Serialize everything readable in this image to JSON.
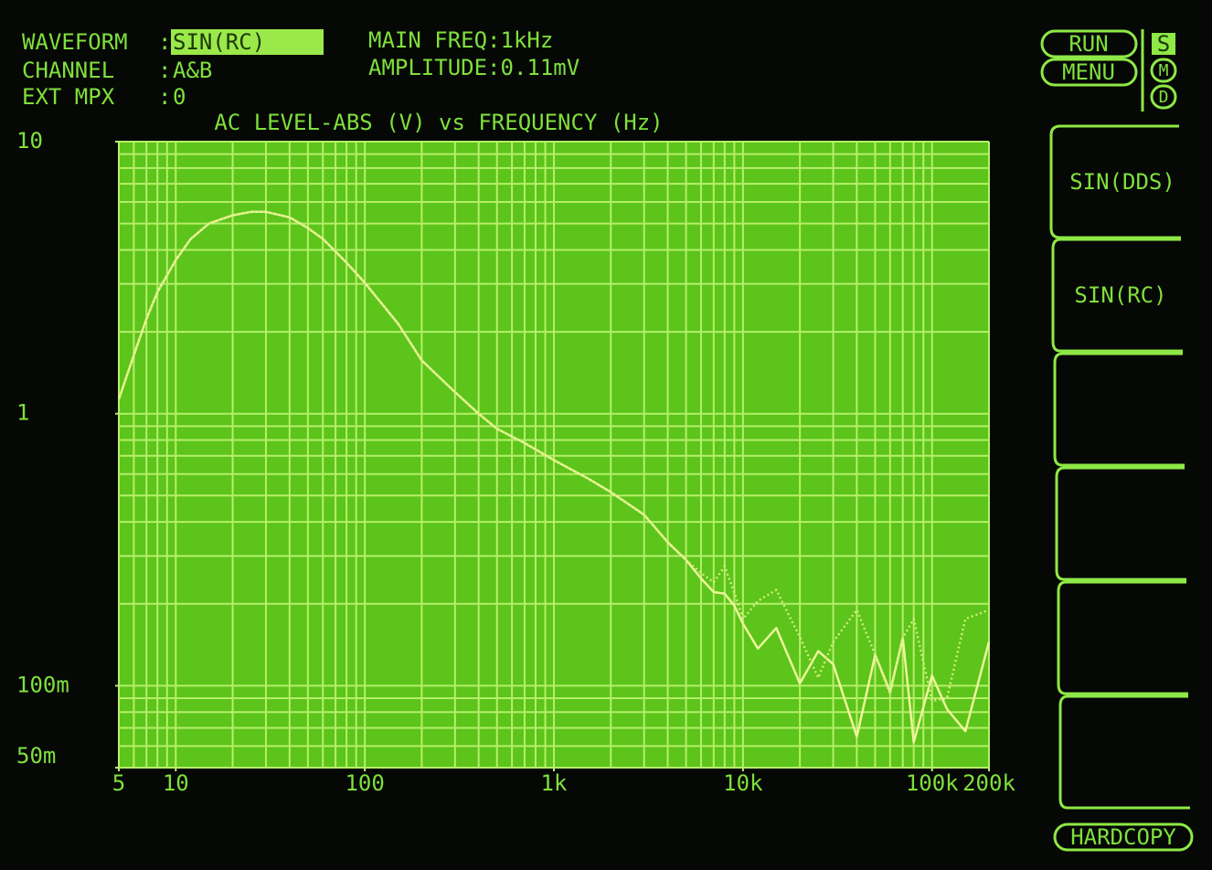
{
  "header": {
    "separator": ":",
    "rows": [
      {
        "label": "WAVEFORM",
        "value": "SIN(RC)"
      },
      {
        "label": "CHANNEL",
        "value": "A&B"
      },
      {
        "label": "EXT MPX",
        "value": "0"
      }
    ],
    "main_freq": "MAIN FREQ:1kHz",
    "amplitude": "AMPLITUDE:0.11mV"
  },
  "controls": {
    "run": "RUN",
    "menu": "MENU",
    "modes": [
      "S",
      "M",
      "D"
    ],
    "softkeys": [
      "SIN(DDS)",
      "SIN(RC)"
    ],
    "hardcopy": "HARDCOPY"
  },
  "chart_data": {
    "type": "line",
    "title": "AC LEVEL-ABS (V) vs FREQUENCY (Hz)",
    "log_x": true,
    "log_y": true,
    "grid": true,
    "xlim": [
      5,
      200000
    ],
    "ylim": [
      0.05,
      10
    ],
    "xticks": [
      5,
      10,
      100,
      {
        "value": 1000,
        "label": "1k"
      },
      {
        "value": 10000,
        "label": "10k"
      },
      {
        "value": 100000,
        "label": "100k"
      },
      {
        "value": 200000,
        "label": "200k"
      }
    ],
    "yticks": [
      10,
      1,
      {
        "value": 0.1,
        "label": "100m"
      },
      {
        "value": 0.05,
        "label": "50m"
      }
    ],
    "xgrid": [
      5,
      6,
      7,
      8,
      9,
      10,
      20,
      30,
      40,
      50,
      60,
      70,
      80,
      90,
      100,
      200,
      300,
      400,
      500,
      600,
      700,
      800,
      900,
      1000,
      2000,
      3000,
      4000,
      5000,
      6000,
      7000,
      8000,
      9000,
      10000,
      20000,
      30000,
      40000,
      50000,
      60000,
      70000,
      80000,
      90000,
      100000,
      200000
    ],
    "ygrid": [
      0.05,
      0.06,
      0.07,
      0.08,
      0.09,
      0.1,
      0.2,
      0.3,
      0.4,
      0.5,
      0.6,
      0.7,
      0.8,
      0.9,
      1,
      2,
      3,
      4,
      5,
      6,
      7,
      8,
      9,
      10
    ],
    "x": [
      5,
      6,
      7,
      8,
      10,
      12,
      15,
      20,
      25,
      30,
      40,
      50,
      60,
      80,
      100,
      150,
      200,
      300,
      400,
      500,
      700,
      1000,
      1500,
      2000,
      3000,
      4000,
      5000,
      6000,
      7000,
      8000,
      9000,
      10000,
      12000,
      15000,
      20000,
      25000,
      30000,
      40000,
      50000,
      60000,
      70000,
      80000,
      100000,
      120000,
      150000,
      200000
    ],
    "series": [
      {
        "color": "#eef59a",
        "style": "solid",
        "values": [
          1.13,
          1.64,
          2.23,
          2.8,
          3.67,
          4.39,
          5.0,
          5.36,
          5.52,
          5.52,
          5.27,
          4.81,
          4.39,
          3.59,
          3.03,
          2.14,
          1.57,
          1.2,
          1.0,
          0.88,
          0.78,
          0.675,
          0.58,
          0.515,
          0.425,
          0.337,
          0.29,
          0.248,
          0.221,
          0.218,
          0.197,
          0.169,
          0.137,
          0.163,
          0.102,
          0.134,
          0.12,
          0.065,
          0.13,
          0.095,
          0.15,
          0.062,
          0.109,
          0.082,
          0.068,
          0.145
        ]
      },
      {
        "color": "#d2ec7c",
        "style": "dotted",
        "values": [
          1.13,
          1.64,
          2.23,
          2.8,
          3.67,
          4.39,
          5.0,
          5.36,
          5.52,
          5.52,
          5.27,
          4.81,
          4.39,
          3.59,
          3.03,
          2.14,
          1.57,
          1.2,
          1.0,
          0.88,
          0.78,
          0.675,
          0.58,
          0.515,
          0.425,
          0.337,
          0.29,
          0.26,
          0.24,
          0.275,
          0.22,
          0.176,
          0.205,
          0.225,
          0.151,
          0.107,
          0.145,
          0.19,
          0.13,
          0.093,
          0.15,
          0.176,
          0.088,
          0.09,
          0.176,
          0.19
        ]
      }
    ]
  }
}
